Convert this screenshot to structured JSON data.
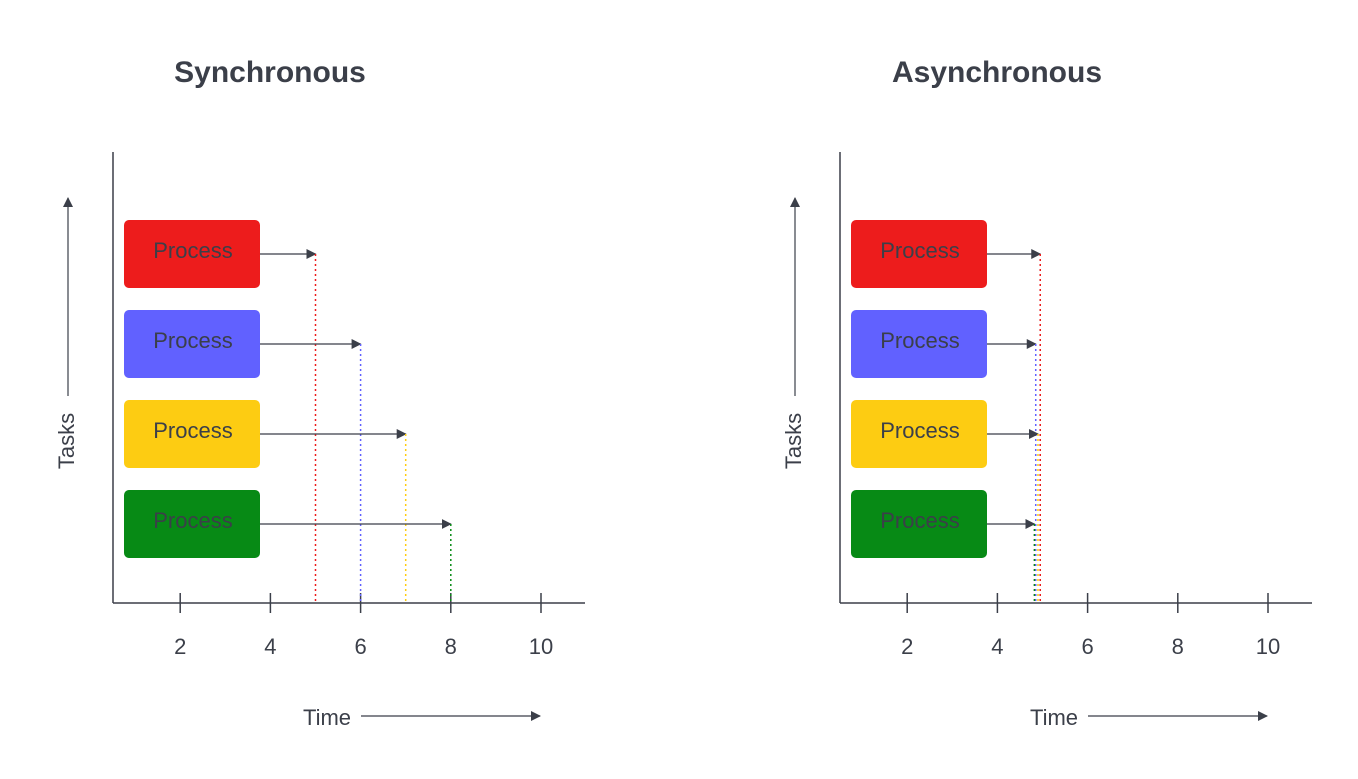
{
  "diagrams": [
    {
      "id": "sync",
      "title": "Synchronous",
      "y_axis_label": "Tasks",
      "x_axis_label": "Time",
      "ticks": [
        "2",
        "4",
        "6",
        "8",
        "10"
      ],
      "tick_values": [
        2,
        4,
        6,
        8,
        10
      ],
      "processes": [
        {
          "label": "Process",
          "color": "#ed1c1c",
          "end_time": 5
        },
        {
          "label": "Process",
          "color": "#6161ff",
          "end_time": 6
        },
        {
          "label": "Process",
          "color": "#fdcc12",
          "end_time": 7
        },
        {
          "label": "Process",
          "color": "#078a15",
          "end_time": 8
        }
      ]
    },
    {
      "id": "async",
      "title": "Asynchronous",
      "y_axis_label": "Tasks",
      "x_axis_label": "Time",
      "ticks": [
        "2",
        "4",
        "6",
        "8",
        "10"
      ],
      "tick_values": [
        2,
        4,
        6,
        8,
        10
      ],
      "processes": [
        {
          "label": "Process",
          "color": "#ed1c1c",
          "end_time": 4.95
        },
        {
          "label": "Process",
          "color": "#6161ff",
          "end_time": 4.85
        },
        {
          "label": "Process",
          "color": "#fdcc12",
          "end_time": 4.9
        },
        {
          "label": "Process",
          "color": "#078a15",
          "end_time": 4.82
        }
      ]
    }
  ],
  "colors": {
    "ink": "#3b3f49"
  }
}
